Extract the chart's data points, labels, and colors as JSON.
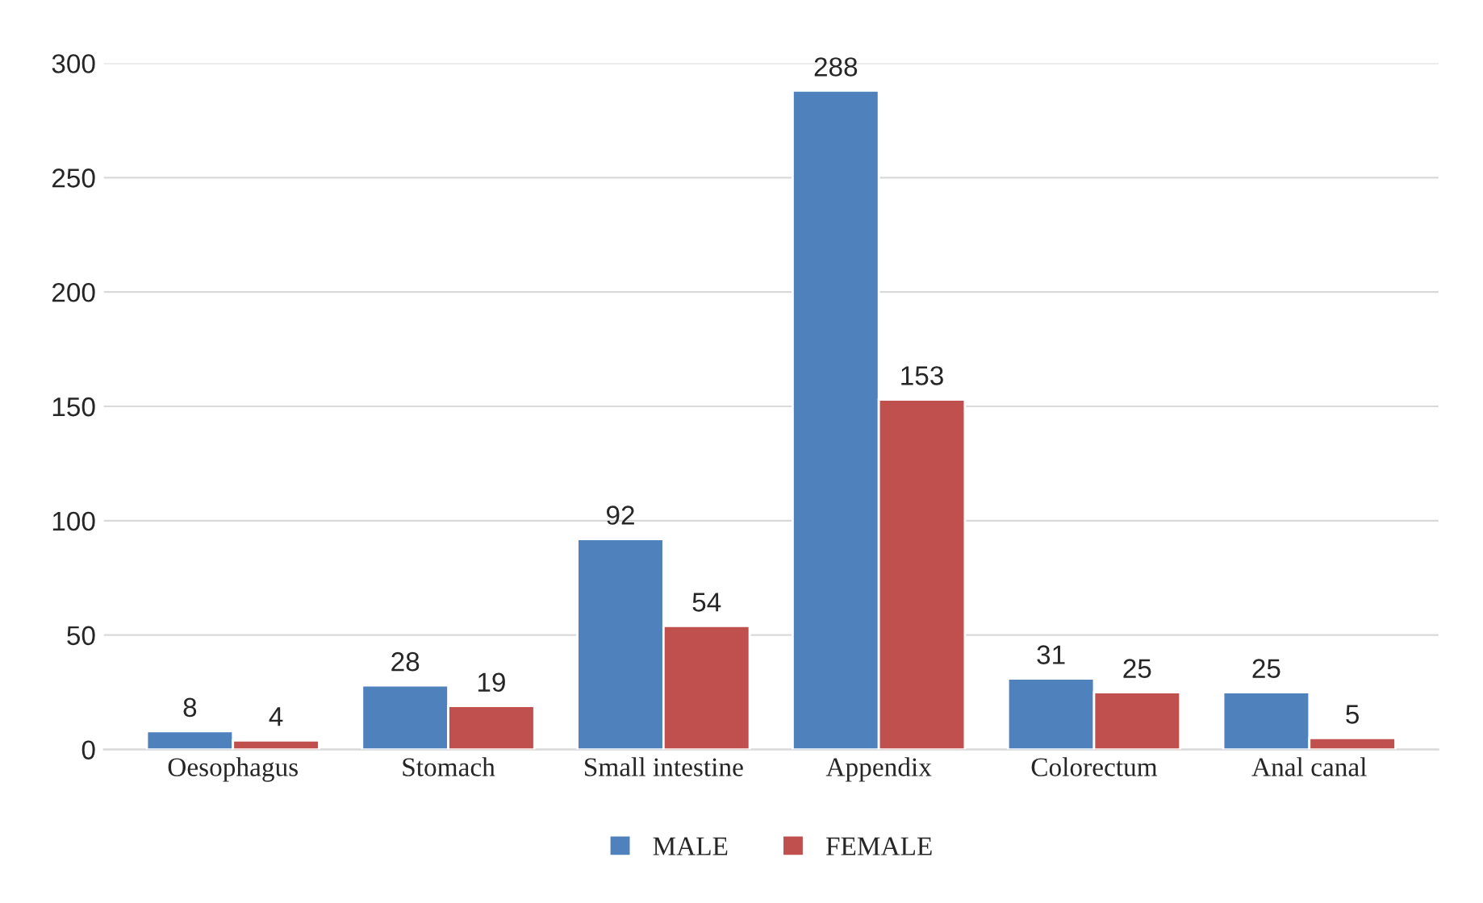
{
  "chart_data": {
    "type": "bar",
    "categories": [
      "Oesophagus",
      "Stomach",
      "Small intestine",
      "Appendix",
      "Colorectum",
      "Anal canal"
    ],
    "series": [
      {
        "name": "MALE",
        "color": "#4f81bd",
        "values": [
          8,
          28,
          92,
          288,
          31,
          25
        ]
      },
      {
        "name": "FEMALE",
        "color": "#c0504d",
        "values": [
          4,
          19,
          54,
          153,
          25,
          5
        ]
      }
    ],
    "ylim": [
      0,
      300
    ],
    "yticks": [
      0,
      50,
      100,
      150,
      200,
      250,
      300
    ],
    "grid": "y",
    "legend": "bottom",
    "data_labels": true
  }
}
